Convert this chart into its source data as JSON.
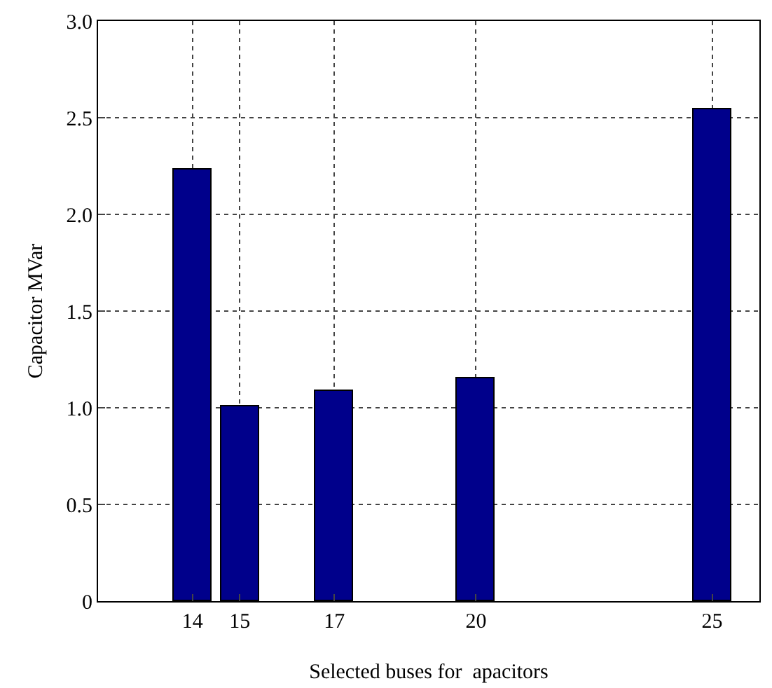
{
  "chart_data": {
    "type": "bar",
    "xlabel": "Selected buses for  apacitors",
    "ylabel": "Capacitor MVar",
    "x": [
      14,
      15,
      17,
      20,
      25
    ],
    "values": [
      2.23,
      1.01,
      1.09,
      1.15,
      2.54
    ],
    "color": "#00008b",
    "xlim": [
      12,
      26
    ],
    "xticks": [
      14,
      15,
      17,
      20,
      25
    ],
    "ylim": [
      0,
      3
    ],
    "yticks": [
      0,
      {
        "value": 0.5,
        "label": "0.5"
      },
      {
        "value": 1,
        "label": "1.0"
      },
      {
        "value": 1.5,
        "label": "1.5"
      },
      {
        "value": 2,
        "label": "2.0"
      },
      {
        "value": 2.5,
        "label": "2.5"
      },
      {
        "value": 3,
        "label": "3.0"
      }
    ],
    "grid": true
  }
}
